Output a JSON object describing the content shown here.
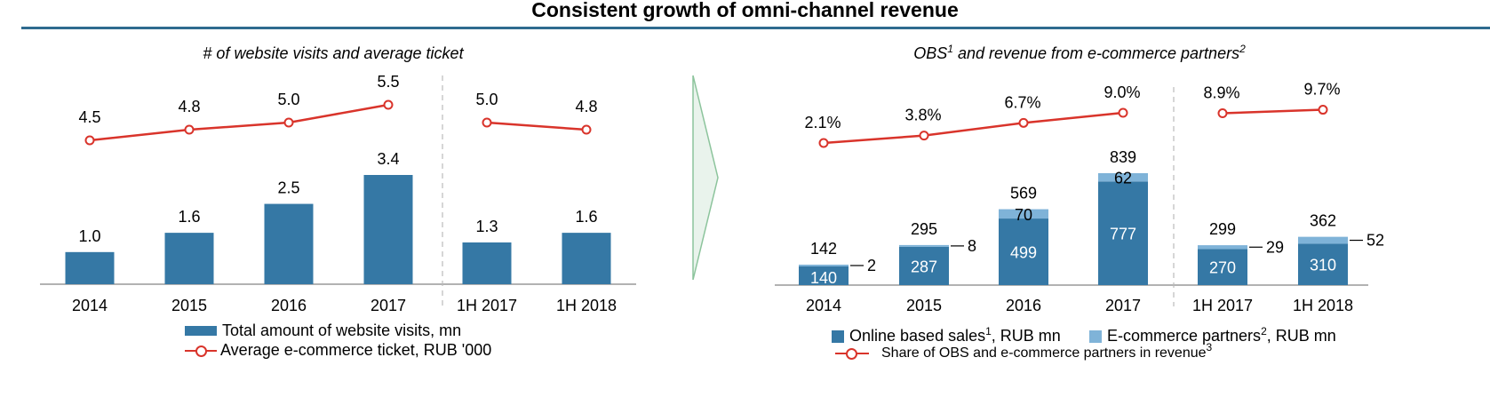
{
  "title": "Consistent growth of omni-channel revenue",
  "colors": {
    "bar_primary": "#3578a5",
    "bar_secondary": "#7fb3d8",
    "line": "#d9342b",
    "rule": "#2f6b8f",
    "arrow_fill": "#e9f3ec",
    "arrow_stroke": "#8cc49c"
  },
  "chart_data": [
    {
      "type": "bar",
      "title": "# of website visits and average ticket",
      "categories": [
        "2014",
        "2015",
        "2016",
        "2017",
        "1H 2017",
        "1H 2018"
      ],
      "series": [
        {
          "name": "Total amount of website visits, mn",
          "type": "bar",
          "values": [
            1.0,
            1.6,
            2.5,
            3.4,
            1.3,
            1.6
          ],
          "labels": [
            "1.0",
            "1.6",
            "2.5",
            "3.4",
            "1.3",
            "1.6"
          ]
        },
        {
          "name": "Average e-commerce ticket, RUB '000",
          "type": "line",
          "values": [
            4.5,
            4.8,
            5.0,
            5.5,
            5.0,
            4.8
          ],
          "labels": [
            "4.5",
            "4.8",
            "5.0",
            "5.5",
            "5.0",
            "4.8"
          ]
        }
      ],
      "groups": [
        [
          "2014",
          "2015",
          "2016",
          "2017"
        ],
        [
          "1H 2017",
          "1H 2018"
        ]
      ],
      "legend": [
        {
          "text": "Total amount of website visits, mn",
          "kind": "bar"
        },
        {
          "text": "Average e-commerce ticket, RUB '000",
          "kind": "line"
        }
      ]
    },
    {
      "type": "bar",
      "stacked": true,
      "title_main": "OBS",
      "title_sup": "1",
      "title_rest": " and revenue from e-commerce partners",
      "title_sup2": "2",
      "categories": [
        "2014",
        "2015",
        "2016",
        "2017",
        "1H 2017",
        "1H 2018"
      ],
      "series": [
        {
          "name": "Online based sales, RUB mn",
          "type": "bar",
          "values": [
            140,
            287,
            499,
            777,
            270,
            310
          ],
          "labels": [
            "140",
            "287",
            "499",
            "777",
            "270",
            "310"
          ]
        },
        {
          "name": "E-commerce partners, RUB mn",
          "type": "bar",
          "values": [
            2,
            8,
            70,
            62,
            29,
            52
          ],
          "labels": [
            "2",
            "8",
            "70",
            "62",
            "29",
            "52"
          ]
        },
        {
          "name": "Share of OBS and e-commerce partners in revenue",
          "type": "line",
          "values": [
            2.1,
            3.8,
            6.7,
            9.0,
            8.9,
            9.7
          ],
          "labels": [
            "2.1%",
            "3.8%",
            "6.7%",
            "9.0%",
            "8.9%",
            "9.7%"
          ]
        }
      ],
      "totals": [
        "142",
        "295",
        "569",
        "839",
        "299",
        "362"
      ],
      "groups": [
        [
          "2014",
          "2015",
          "2016",
          "2017"
        ],
        [
          "1H 2017",
          "1H 2018"
        ]
      ],
      "legend": [
        {
          "text": "Online based sales",
          "sup": "1",
          "rest": ", RUB mn",
          "kind": "bar"
        },
        {
          "text": "E-commerce partners",
          "sup": "2",
          "rest": ", RUB mn",
          "kind": "bar2"
        },
        {
          "text": "Share of OBS and e-commerce partners in revenue",
          "sup": "3",
          "rest": "",
          "kind": "line"
        }
      ]
    }
  ]
}
